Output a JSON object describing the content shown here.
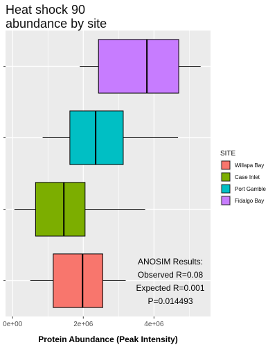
{
  "chart_data": {
    "type": "boxplot",
    "orientation": "horizontal",
    "title_lines": [
      "Heat shock 90",
      "abundance by site"
    ],
    "xlabel": "Protein Abundance (Peak Intensity)",
    "ylabel": "",
    "xlim": [
      -200000,
      5600000
    ],
    "x_ticks": [
      0,
      2000000,
      4000000
    ],
    "x_tick_labels": [
      "0e+00",
      "2e+06",
      "4e+06"
    ],
    "grid": true,
    "legend": {
      "title": "SITE",
      "placement": "right"
    },
    "series": [
      {
        "name": "Willapa Bay",
        "color": "#F8766D",
        "whisker_low": 500000,
        "q1": 1150000,
        "median": 1980000,
        "q3": 2550000,
        "whisker_high": 3200000
      },
      {
        "name": "Case Inlet",
        "color": "#7CAE00",
        "whisker_low": 50000,
        "q1": 650000,
        "median": 1450000,
        "q3": 2050000,
        "whisker_high": 3750000
      },
      {
        "name": "Port Gamble",
        "color": "#00BFC4",
        "whisker_low": 850000,
        "q1": 1620000,
        "median": 2350000,
        "q3": 3130000,
        "whisker_high": 4680000
      },
      {
        "name": "Fidalgo Bay",
        "color": "#C77CFF",
        "whisker_low": 1900000,
        "q1": 2430000,
        "median": 3800000,
        "q3": 4700000,
        "whisker_high": 5320000
      }
    ],
    "annotation_lines": [
      "ANOSIM Results:",
      "Observed R=0.08",
      "Expected R=0.001",
      "P=0.014493"
    ]
  }
}
